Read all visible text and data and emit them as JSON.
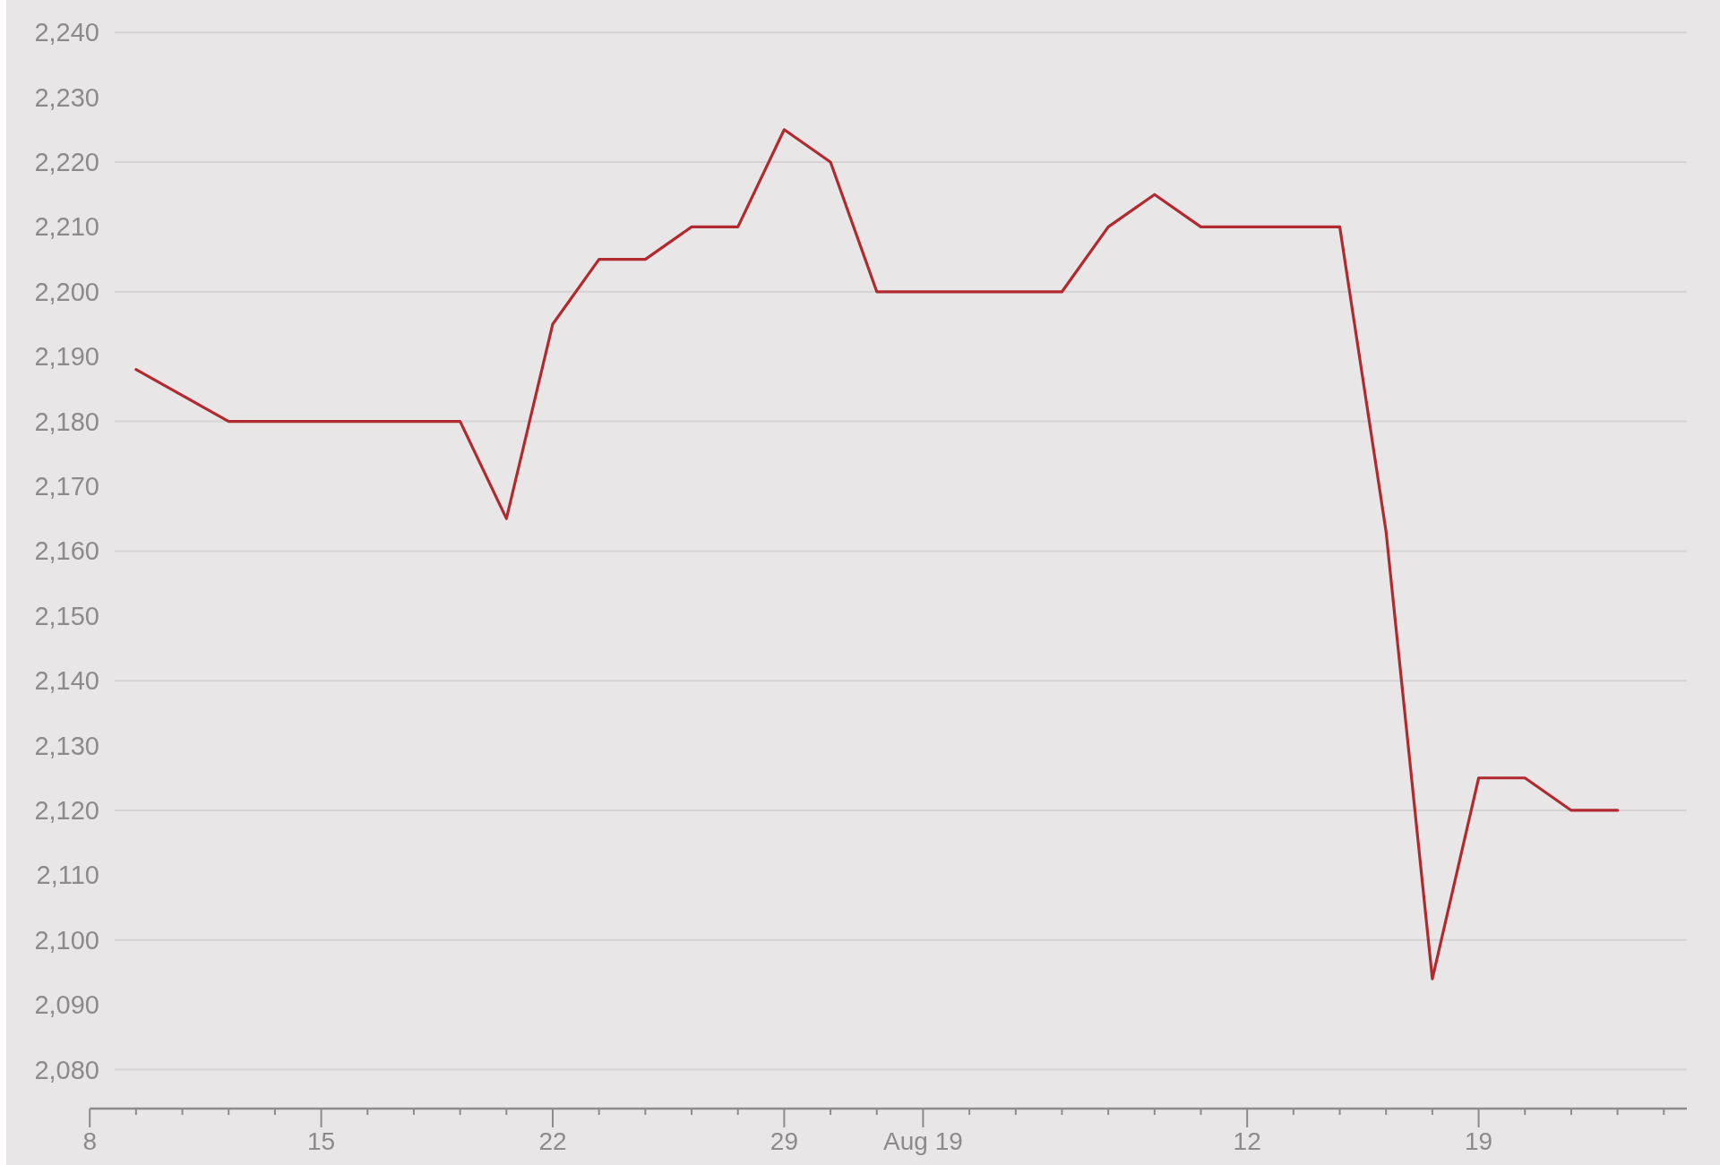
{
  "chart_data": {
    "type": "line",
    "categories": [
      "8",
      null,
      null,
      null,
      null,
      "15",
      null,
      null,
      null,
      null,
      "22",
      null,
      null,
      null,
      null,
      "29",
      null,
      null,
      "Aug 19",
      null,
      null,
      null,
      null,
      null,
      null,
      "12",
      null,
      null,
      null,
      null,
      "19",
      null,
      null,
      null,
      null
    ],
    "series": [
      {
        "color": "#b02a2f",
        "values": [
          null,
          2188,
          2184,
          2180,
          2180,
          2180,
          2180,
          2180,
          2180,
          2165,
          2195,
          2205,
          2205,
          2210,
          2210,
          2225,
          2220,
          2200,
          2200,
          2200,
          2200,
          2200,
          2210,
          2215,
          2210,
          2210,
          2210,
          2210,
          2163,
          2094,
          2125,
          2125,
          2120,
          2120,
          null
        ]
      }
    ],
    "ylim": [
      2074,
      2245
    ],
    "yticks": [
      {
        "value": 2080,
        "label": "2,080"
      },
      {
        "value": 2090,
        "label": "2,090"
      },
      {
        "value": 2100,
        "label": "2,100"
      },
      {
        "value": 2110,
        "label": "2,110"
      },
      {
        "value": 2120,
        "label": "2,120"
      },
      {
        "value": 2130,
        "label": "2,130"
      },
      {
        "value": 2140,
        "label": "2,140"
      },
      {
        "value": 2150,
        "label": "2,150"
      },
      {
        "value": 2160,
        "label": "2,160"
      },
      {
        "value": 2170,
        "label": "2,170"
      },
      {
        "value": 2180,
        "label": "2,180"
      },
      {
        "value": 2190,
        "label": "2,190"
      },
      {
        "value": 2200,
        "label": "2,200"
      },
      {
        "value": 2210,
        "label": "2,210"
      },
      {
        "value": 2220,
        "label": "2,220"
      },
      {
        "value": 2230,
        "label": "2,230"
      },
      {
        "value": 2240,
        "label": "2,240"
      }
    ],
    "grid": "y"
  }
}
